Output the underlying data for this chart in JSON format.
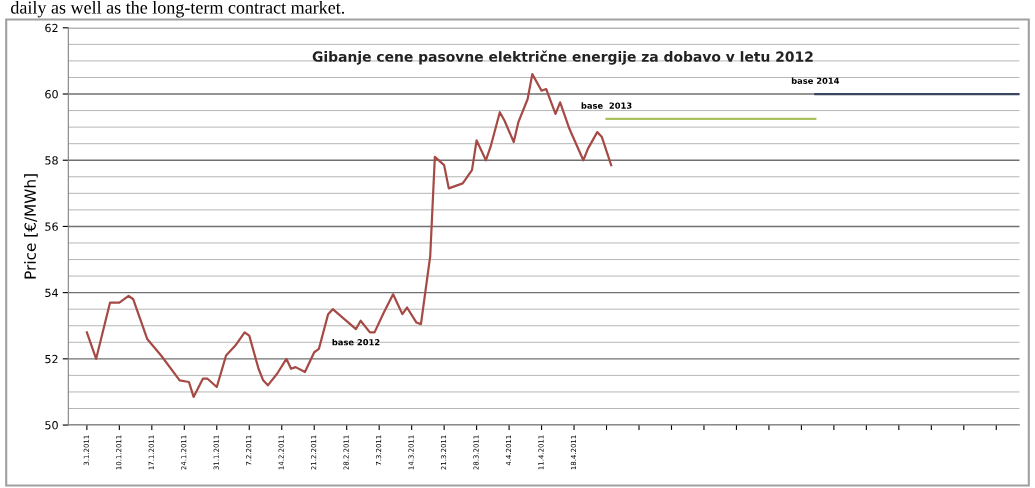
{
  "chart_data": {
    "type": "line",
    "title": "Gibanje cene pasovne električne energije za dobavo v letu 2012",
    "ylabel": "Price [€/MWh]",
    "annotations": [
      "daily as well as the long-term contract market."
    ],
    "series": [
      {
        "name": "base 2012",
        "color": "#a54a45",
        "x": [
          "2011-01-03",
          "2011-01-05",
          "2011-01-08",
          "2011-01-10",
          "2011-01-12",
          "2011-01-13",
          "2011-01-16",
          "2011-01-19",
          "2011-01-23",
          "2011-01-25",
          "2011-01-26",
          "2011-01-28",
          "2011-01-29",
          "2011-01-31",
          "2011-02-02",
          "2011-02-04",
          "2011-02-06",
          "2011-02-07",
          "2011-02-09",
          "2011-02-10",
          "2011-02-11",
          "2011-02-13",
          "2011-02-15",
          "2011-02-16",
          "2011-02-17",
          "2011-02-19",
          "2011-02-21",
          "2011-02-22",
          "2011-02-24",
          "2011-02-25",
          "2011-03-02",
          "2011-03-03",
          "2011-03-05",
          "2011-03-06",
          "2011-03-08",
          "2011-03-10",
          "2011-03-12",
          "2011-03-13",
          "2011-03-15",
          "2011-03-16",
          "2011-03-18",
          "2011-03-19",
          "2011-03-21",
          "2011-03-22",
          "2011-03-25",
          "2011-03-27",
          "2011-03-28",
          "2011-03-30",
          "2011-03-31",
          "2011-04-02",
          "2011-04-03",
          "2011-04-05",
          "2011-04-06",
          "2011-04-08",
          "2011-04-09",
          "2011-04-11",
          "2011-04-12",
          "2011-04-14",
          "2011-04-15",
          "2011-04-17",
          "2011-04-20",
          "2011-04-21",
          "2011-04-23",
          "2011-04-24",
          "2011-04-26"
        ],
        "values": [
          52.8,
          52.0,
          53.7,
          53.7,
          53.9,
          53.8,
          52.6,
          52.1,
          51.35,
          51.3,
          50.85,
          51.4,
          51.4,
          51.15,
          52.1,
          52.4,
          52.8,
          52.7,
          51.7,
          51.35,
          51.2,
          51.55,
          52.0,
          51.7,
          51.75,
          51.6,
          52.2,
          52.3,
          53.35,
          53.5,
          52.9,
          53.15,
          52.8,
          52.8,
          53.4,
          53.95,
          53.35,
          53.55,
          53.1,
          53.05,
          55.1,
          58.1,
          57.85,
          57.15,
          57.3,
          57.7,
          58.6,
          58.0,
          58.4,
          59.45,
          59.2,
          58.55,
          59.15,
          59.85,
          60.6,
          60.1,
          60.15,
          59.4,
          59.75,
          58.95,
          58.0,
          58.35,
          58.85,
          58.7,
          57.85
        ]
      },
      {
        "name": "base  2013",
        "color": "#a9c25e",
        "x": [
          "2011-04-25",
          "2011-06-09"
        ],
        "values": [
          59.25,
          59.25
        ]
      },
      {
        "name": "base 2014",
        "color": "#3a4660",
        "x": [
          "2011-06-09",
          "2011-07-23"
        ],
        "values": [
          60.0,
          60.0
        ]
      }
    ],
    "xlim": [
      "2010-12-30",
      "2011-07-23"
    ],
    "xticks": [
      {
        "value": "2011-01-03",
        "label": "3.1.2011"
      },
      {
        "value": "2011-01-10",
        "label": "10.1.2011"
      },
      {
        "value": "2011-01-17",
        "label": "17.1.2011"
      },
      {
        "value": "2011-01-24",
        "label": "24.1.2011"
      },
      {
        "value": "2011-01-31",
        "label": "31.1.2011"
      },
      {
        "value": "2011-02-07",
        "label": "7.2.2011"
      },
      {
        "value": "2011-02-14",
        "label": "14.2.2011"
      },
      {
        "value": "2011-02-21",
        "label": "21.2.2011"
      },
      {
        "value": "2011-02-28",
        "label": "28.2.2011"
      },
      {
        "value": "2011-03-07",
        "label": "7.3.2011"
      },
      {
        "value": "2011-03-14",
        "label": "14.3.2011"
      },
      {
        "value": "2011-03-21",
        "label": "21.3.2011"
      },
      {
        "value": "2011-03-28",
        "label": "28.3.2011"
      },
      {
        "value": "2011-04-04",
        "label": "4.4.2011"
      },
      {
        "value": "2011-04-11",
        "label": "11.4.2011"
      },
      {
        "value": "2011-04-18",
        "label": "18.4.2011"
      },
      {
        "value": "2011-04-25",
        "label": null
      },
      {
        "value": "2011-05-02",
        "label": null
      },
      {
        "value": "2011-05-09",
        "label": null
      },
      {
        "value": "2011-05-16",
        "label": null
      },
      {
        "value": "2011-05-23",
        "label": null
      },
      {
        "value": "2011-05-30",
        "label": null
      },
      {
        "value": "2011-06-06",
        "label": null
      },
      {
        "value": "2011-06-13",
        "label": null
      },
      {
        "value": "2011-06-20",
        "label": null
      },
      {
        "value": "2011-06-27",
        "label": null
      },
      {
        "value": "2011-07-04",
        "label": null
      },
      {
        "value": "2011-07-11",
        "label": null
      },
      {
        "value": "2011-07-18",
        "label": null
      }
    ],
    "ylim": [
      50,
      62
    ],
    "yticks": [
      50,
      {
        "value": 50.5,
        "label": null
      },
      {
        "value": 51,
        "label": null
      },
      {
        "value": 51.5,
        "label": null
      },
      52,
      {
        "value": 52.5,
        "label": null
      },
      {
        "value": 53,
        "label": null
      },
      {
        "value": 53.5,
        "label": null
      },
      54,
      {
        "value": 54.5,
        "label": null
      },
      {
        "value": 55,
        "label": null
      },
      {
        "value": 55.5,
        "label": null
      },
      56,
      {
        "value": 56.5,
        "label": null
      },
      {
        "value": 57,
        "label": null
      },
      {
        "value": 57.5,
        "label": null
      },
      58,
      {
        "value": 58.5,
        "label": null
      },
      {
        "value": 59,
        "label": null
      },
      {
        "value": 59.5,
        "label": null
      },
      60,
      {
        "value": 60.5,
        "label": null
      },
      {
        "value": 61,
        "label": null
      },
      {
        "value": 61.5,
        "label": null
      },
      62
    ],
    "grid": "y",
    "legend": false,
    "marker": "none",
    "line_style": "solid"
  }
}
